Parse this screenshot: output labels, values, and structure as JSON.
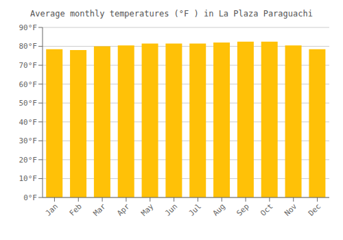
{
  "chart_data": {
    "type": "bar",
    "title": "Average monthly temperatures (°F ) in La Plaza Paraguachi",
    "categories": [
      "Jan",
      "Feb",
      "Mar",
      "Apr",
      "May",
      "Jun",
      "Jul",
      "Aug",
      "Sep",
      "Oct",
      "Nov",
      "Dec"
    ],
    "values": [
      78.5,
      78.0,
      80.0,
      80.5,
      81.5,
      81.5,
      81.5,
      82.0,
      82.5,
      82.5,
      80.5,
      78.5
    ],
    "color": "#FFC107",
    "ylim": [
      0,
      90
    ],
    "yticks": [
      {
        "value": 0,
        "label": "0°F"
      },
      {
        "value": 10,
        "label": "10°F"
      },
      {
        "value": 20,
        "label": "20°F"
      },
      {
        "value": 30,
        "label": "30°F"
      },
      {
        "value": 40,
        "label": "40°F"
      },
      {
        "value": 50,
        "label": "50°F"
      },
      {
        "value": 60,
        "label": "60°F"
      },
      {
        "value": 70,
        "label": "70°F"
      },
      {
        "value": 80,
        "label": "80°F"
      },
      {
        "value": 90,
        "label": "90°F"
      }
    ],
    "grid": true
  }
}
